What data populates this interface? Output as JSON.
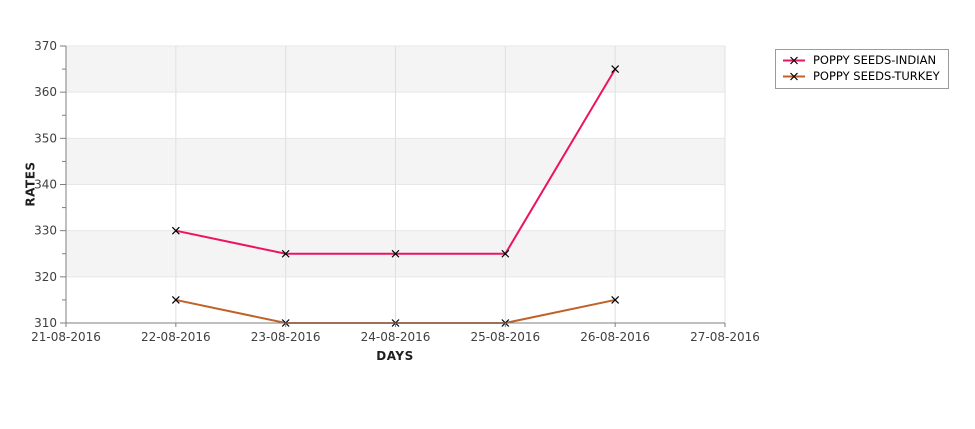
{
  "colors": {
    "plot_band": "#f4f4f4",
    "grid_vertical": "#e0e0e0",
    "grid_horizontal": "#e7e7e7",
    "axis_line": "#7f7f7f",
    "tick_label": "#3f3f3f",
    "marker": "#000000",
    "legend_border": "#9b9b9b"
  },
  "chart_data": {
    "type": "line",
    "title": "",
    "xlabel": "DAYS",
    "ylabel": "RATES",
    "x_tick_labels": [
      "21-08-2016",
      "22-08-2016",
      "23-08-2016",
      "24-08-2016",
      "25-08-2016",
      "26-08-2016",
      "27-08-2016"
    ],
    "y_ticks": [
      310,
      320,
      330,
      340,
      350,
      360,
      370
    ],
    "y_minor_step": 5,
    "ylim": [
      310,
      370
    ],
    "grid": true,
    "legend_position": "top-right",
    "marker_style": "x",
    "series": [
      {
        "name": "POPPY SEEDS-INDIAN",
        "color": "#ec1462",
        "x": [
          "22-08-2016",
          "23-08-2016",
          "24-08-2016",
          "25-08-2016",
          "26-08-2016"
        ],
        "values": [
          330,
          325,
          325,
          325,
          365
        ]
      },
      {
        "name": "POPPY SEEDS-TURKEY",
        "color": "#bf6128",
        "x": [
          "22-08-2016",
          "23-08-2016",
          "24-08-2016",
          "25-08-2016",
          "26-08-2016"
        ],
        "values": [
          315,
          310,
          310,
          310,
          315
        ]
      }
    ]
  }
}
